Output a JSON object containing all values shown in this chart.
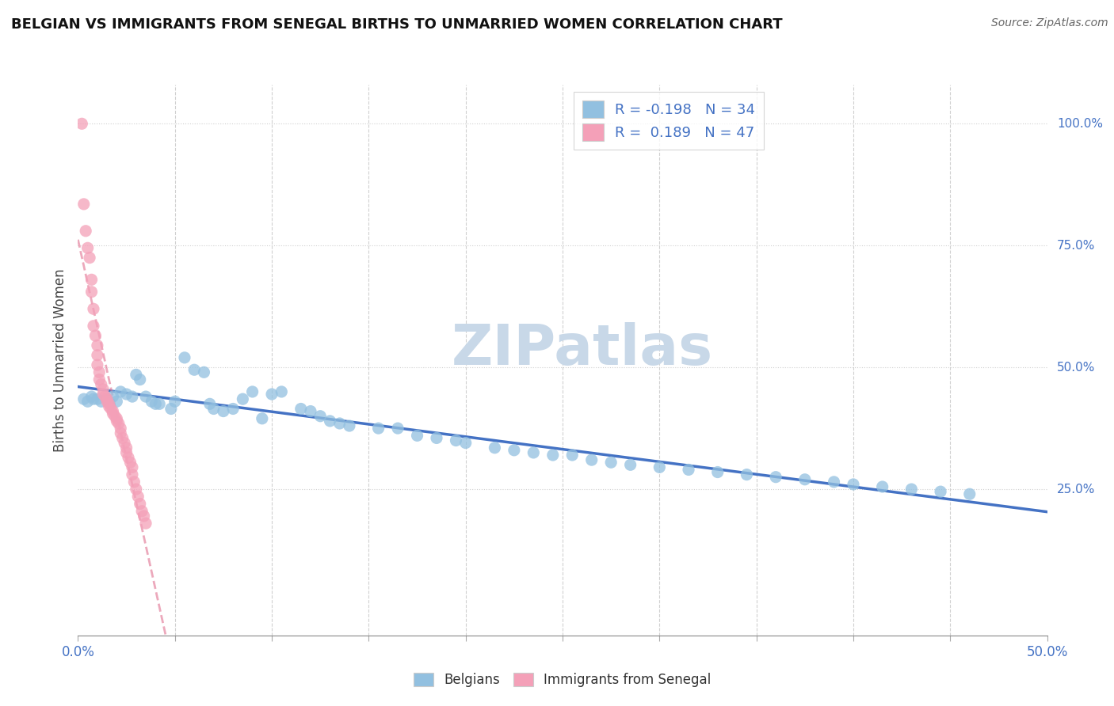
{
  "title": "BELGIAN VS IMMIGRANTS FROM SENEGAL BIRTHS TO UNMARRIED WOMEN CORRELATION CHART",
  "source": "Source: ZipAtlas.com",
  "ylabel": "Births to Unmarried Women",
  "ylabel_right_ticks": [
    "100.0%",
    "75.0%",
    "50.0%",
    "25.0%"
  ],
  "ylabel_right_vals": [
    1.0,
    0.75,
    0.5,
    0.25
  ],
  "xlim": [
    0.0,
    0.5
  ],
  "ylim": [
    -0.05,
    1.08
  ],
  "background_color": "#ffffff",
  "blue_color": "#92c0e0",
  "pink_color": "#f4a0b8",
  "blue_scatter": [
    [
      0.003,
      0.435
    ],
    [
      0.005,
      0.43
    ],
    [
      0.007,
      0.44
    ],
    [
      0.008,
      0.435
    ],
    [
      0.01,
      0.435
    ],
    [
      0.012,
      0.43
    ],
    [
      0.015,
      0.435
    ],
    [
      0.018,
      0.44
    ],
    [
      0.02,
      0.43
    ],
    [
      0.022,
      0.45
    ],
    [
      0.025,
      0.445
    ],
    [
      0.028,
      0.44
    ],
    [
      0.03,
      0.485
    ],
    [
      0.032,
      0.475
    ],
    [
      0.035,
      0.44
    ],
    [
      0.038,
      0.43
    ],
    [
      0.04,
      0.425
    ],
    [
      0.042,
      0.425
    ],
    [
      0.048,
      0.415
    ],
    [
      0.05,
      0.43
    ],
    [
      0.055,
      0.52
    ],
    [
      0.06,
      0.495
    ],
    [
      0.065,
      0.49
    ],
    [
      0.068,
      0.425
    ],
    [
      0.07,
      0.415
    ],
    [
      0.075,
      0.41
    ],
    [
      0.08,
      0.415
    ],
    [
      0.085,
      0.435
    ],
    [
      0.09,
      0.45
    ],
    [
      0.095,
      0.395
    ],
    [
      0.1,
      0.445
    ],
    [
      0.105,
      0.45
    ],
    [
      0.115,
      0.415
    ],
    [
      0.12,
      0.41
    ],
    [
      0.125,
      0.4
    ],
    [
      0.13,
      0.39
    ],
    [
      0.135,
      0.385
    ],
    [
      0.14,
      0.38
    ],
    [
      0.155,
      0.375
    ],
    [
      0.165,
      0.375
    ],
    [
      0.175,
      0.36
    ],
    [
      0.185,
      0.355
    ],
    [
      0.195,
      0.35
    ],
    [
      0.2,
      0.345
    ],
    [
      0.215,
      0.335
    ],
    [
      0.225,
      0.33
    ],
    [
      0.235,
      0.325
    ],
    [
      0.245,
      0.32
    ],
    [
      0.255,
      0.32
    ],
    [
      0.265,
      0.31
    ],
    [
      0.275,
      0.305
    ],
    [
      0.285,
      0.3
    ],
    [
      0.3,
      0.295
    ],
    [
      0.315,
      0.29
    ],
    [
      0.33,
      0.285
    ],
    [
      0.345,
      0.28
    ],
    [
      0.36,
      0.275
    ],
    [
      0.375,
      0.27
    ],
    [
      0.39,
      0.265
    ],
    [
      0.4,
      0.26
    ],
    [
      0.415,
      0.255
    ],
    [
      0.43,
      0.25
    ],
    [
      0.445,
      0.245
    ],
    [
      0.46,
      0.24
    ]
  ],
  "pink_scatter": [
    [
      0.002,
      1.0
    ],
    [
      0.003,
      0.835
    ],
    [
      0.004,
      0.78
    ],
    [
      0.005,
      0.745
    ],
    [
      0.006,
      0.725
    ],
    [
      0.007,
      0.68
    ],
    [
      0.007,
      0.655
    ],
    [
      0.008,
      0.62
    ],
    [
      0.008,
      0.585
    ],
    [
      0.009,
      0.565
    ],
    [
      0.01,
      0.545
    ],
    [
      0.01,
      0.525
    ],
    [
      0.01,
      0.505
    ],
    [
      0.011,
      0.49
    ],
    [
      0.011,
      0.475
    ],
    [
      0.012,
      0.465
    ],
    [
      0.013,
      0.455
    ],
    [
      0.013,
      0.445
    ],
    [
      0.014,
      0.44
    ],
    [
      0.015,
      0.435
    ],
    [
      0.015,
      0.43
    ],
    [
      0.016,
      0.425
    ],
    [
      0.016,
      0.42
    ],
    [
      0.017,
      0.415
    ],
    [
      0.018,
      0.41
    ],
    [
      0.018,
      0.405
    ],
    [
      0.019,
      0.4
    ],
    [
      0.02,
      0.395
    ],
    [
      0.02,
      0.39
    ],
    [
      0.021,
      0.385
    ],
    [
      0.022,
      0.375
    ],
    [
      0.022,
      0.365
    ],
    [
      0.023,
      0.355
    ],
    [
      0.024,
      0.345
    ],
    [
      0.025,
      0.335
    ],
    [
      0.025,
      0.325
    ],
    [
      0.026,
      0.315
    ],
    [
      0.027,
      0.305
    ],
    [
      0.028,
      0.295
    ],
    [
      0.028,
      0.28
    ],
    [
      0.029,
      0.265
    ],
    [
      0.03,
      0.25
    ],
    [
      0.031,
      0.235
    ],
    [
      0.032,
      0.22
    ],
    [
      0.033,
      0.205
    ],
    [
      0.034,
      0.195
    ],
    [
      0.035,
      0.18
    ]
  ],
  "blue_trend_color": "#4472c4",
  "pink_trend_color": "#e07090",
  "pink_trend_dashed_color": "#e8b0c0",
  "grid_color": "#d0d0d0",
  "watermark_color": "#c8d8e8",
  "title_fontsize": 13,
  "source_fontsize": 10,
  "tick_color": "#4472c4"
}
